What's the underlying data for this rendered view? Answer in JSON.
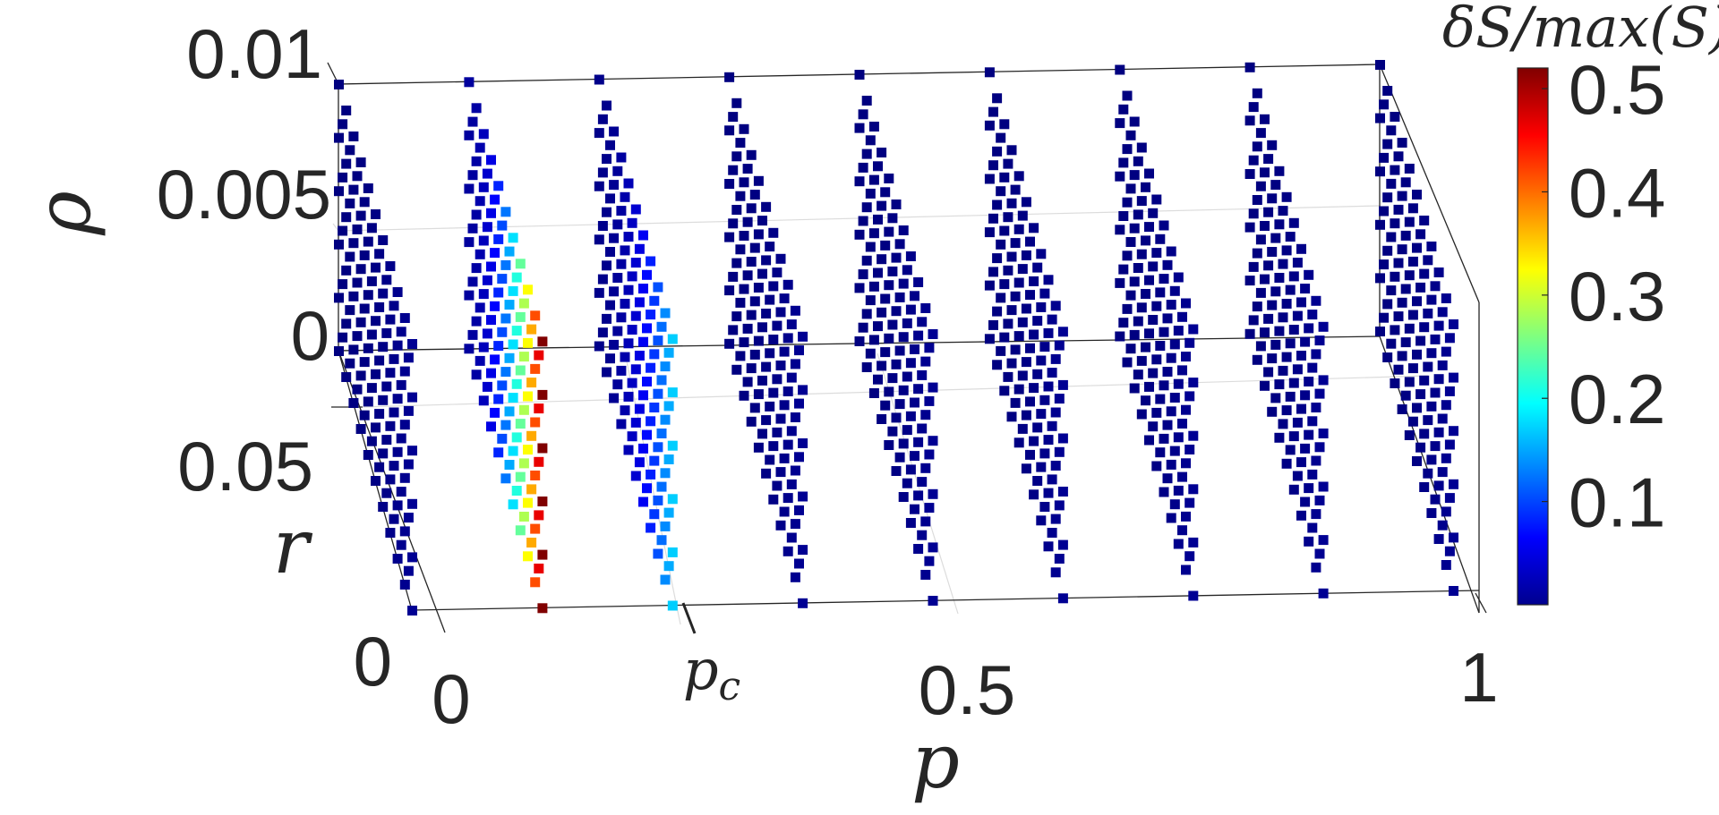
{
  "chart_data": {
    "type": "scatter",
    "view": "3d",
    "title": "",
    "xlabel": "p",
    "ylabel": "r",
    "zlabel": "ρ",
    "colorbar_label": "δS/max(S)",
    "colormap": "jet",
    "x_ticks": [
      "0",
      "p_c",
      "0.5",
      "1"
    ],
    "y_ticks": [
      "0",
      "0.05"
    ],
    "z_ticks": [
      "0",
      "0.005",
      "0.01"
    ],
    "colorbar_ticks": [
      "0.1",
      "0.2",
      "0.3",
      "0.4",
      "0.5"
    ],
    "xlim": [
      0,
      1
    ],
    "ylim": [
      0,
      0.1
    ],
    "zlim": [
      0,
      0.01
    ],
    "clim": [
      0,
      0.52
    ],
    "slices": [
      {
        "p": 0.0,
        "max_value": 0.01
      },
      {
        "p": 0.125,
        "max_value": 0.52
      },
      {
        "p": 0.25,
        "max_value": 0.17
      },
      {
        "p": 0.375,
        "max_value": 0.01
      },
      {
        "p": 0.5,
        "max_value": 0.01
      },
      {
        "p": 0.625,
        "max_value": 0.01
      },
      {
        "p": 0.75,
        "max_value": 0.01
      },
      {
        "p": 0.875,
        "max_value": 0.01
      },
      {
        "p": 1.0,
        "max_value": 0.01
      }
    ],
    "r_values": [
      0.0,
      0.005,
      0.01,
      0.015,
      0.02,
      0.025,
      0.03,
      0.035,
      0.04,
      0.045,
      0.05,
      0.055,
      0.06,
      0.065,
      0.07,
      0.075,
      0.08,
      0.085,
      0.09,
      0.095,
      0.1
    ],
    "rho_values": [
      0.0,
      0.001,
      0.002,
      0.003,
      0.004,
      0.005,
      0.006,
      0.007,
      0.008,
      0.009,
      0.01
    ]
  }
}
